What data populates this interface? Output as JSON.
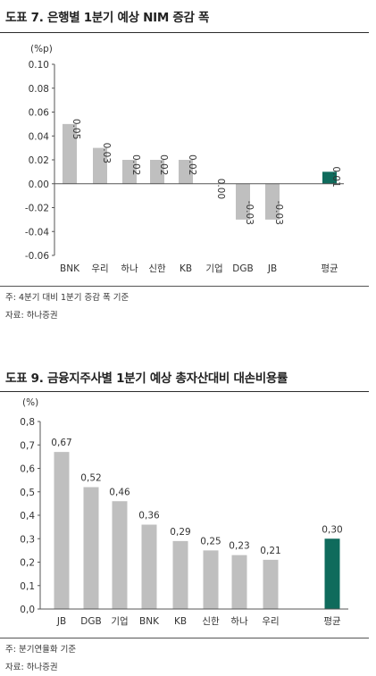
{
  "chart1": {
    "title": "도표 7. 은행별 1분기 예상 NIM 증감 폭",
    "note": "주: 4분기 대비 1분기 증감 폭 기준",
    "source": "자료: 하나증권"
  },
  "chart2": {
    "title": "도표 9. 금융지주사별 1분기 예상 총자산대비 대손비용률",
    "note": "주: 분기연율화 기준",
    "source": "자료: 하나증권"
  },
  "chart_data": [
    {
      "type": "bar",
      "title": "도표 7. 은행별 1분기 예상 NIM 증감 폭",
      "unit": "(%p)",
      "categories": [
        "BNK",
        "우리",
        "하나",
        "신한",
        "KB",
        "기업",
        "DGB",
        "JB",
        "평균"
      ],
      "values": [
        0.05,
        0.03,
        0.02,
        0.02,
        0.02,
        0.0,
        -0.03,
        -0.03,
        0.01
      ],
      "labels": [
        "0.05",
        "0.03",
        "0.02",
        "0.02",
        "0.02",
        "0.00",
        "-0.03",
        "-0.03",
        "0.01"
      ],
      "yticks": [
        "0.10",
        "0.08",
        "0.06",
        "0.04",
        "0.02",
        "0.00",
        "-0.02",
        "-0.04",
        "-0.06"
      ],
      "ylim": [
        -0.06,
        0.1
      ],
      "colors": {
        "bar": "#bfbfbf",
        "highlight": "#0f6b5c"
      },
      "highlight_index": 8
    },
    {
      "type": "bar",
      "title": "도표 9. 금융지주사별 1분기 예상 총자산대비 대손비용률",
      "unit": "(%)",
      "categories": [
        "JB",
        "DGB",
        "기업",
        "BNK",
        "KB",
        "신한",
        "하나",
        "우리",
        "평균"
      ],
      "values": [
        0.67,
        0.52,
        0.46,
        0.36,
        0.29,
        0.25,
        0.23,
        0.21,
        0.3
      ],
      "labels": [
        "0,67",
        "0,52",
        "0,46",
        "0,36",
        "0,29",
        "0,25",
        "0,23",
        "0,21",
        "0,30"
      ],
      "yticks": [
        "0,8",
        "0,7",
        "0,6",
        "0,5",
        "0,4",
        "0,3",
        "0,2",
        "0,1",
        "0,0"
      ],
      "ylim": [
        0,
        0.8
      ],
      "colors": {
        "bar": "#bfbfbf",
        "highlight": "#0f6b5c"
      },
      "highlight_index": 8
    }
  ]
}
